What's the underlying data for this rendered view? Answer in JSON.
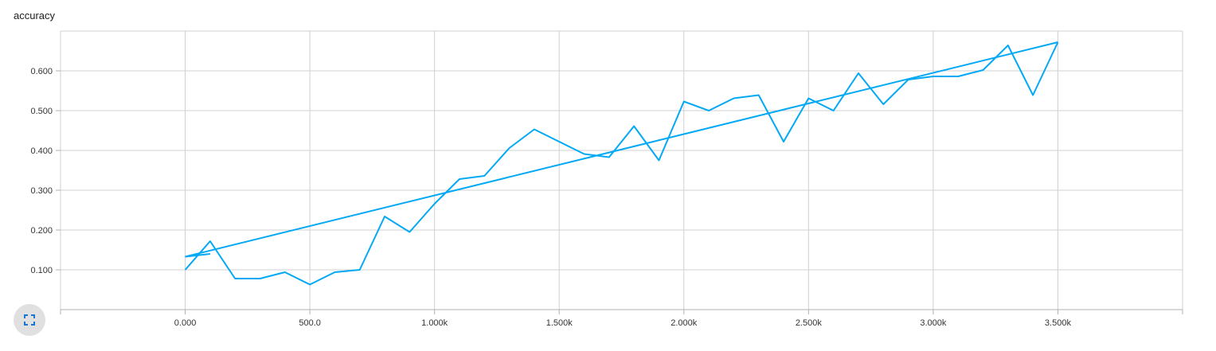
{
  "chart_data": {
    "type": "line",
    "title": "accuracy",
    "xlabel": "",
    "ylabel": "",
    "xlim": [
      -500,
      4000
    ],
    "ylim": [
      0,
      0.7
    ],
    "x_ticks": [
      {
        "value": 0,
        "label": "0.000"
      },
      {
        "value": 500,
        "label": "500.0"
      },
      {
        "value": 1000,
        "label": "1.000k"
      },
      {
        "value": 1500,
        "label": "1.500k"
      },
      {
        "value": 2000,
        "label": "2.000k"
      },
      {
        "value": 2500,
        "label": "2.500k"
      },
      {
        "value": 3000,
        "label": "3.000k"
      },
      {
        "value": 3500,
        "label": "3.500k"
      }
    ],
    "y_ticks": [
      {
        "value": 0.1,
        "label": "0.100"
      },
      {
        "value": 0.2,
        "label": "0.200"
      },
      {
        "value": 0.3,
        "label": "0.300"
      },
      {
        "value": 0.4,
        "label": "0.400"
      },
      {
        "value": 0.5,
        "label": "0.500"
      },
      {
        "value": 0.6,
        "label": "0.600"
      }
    ],
    "grid": true,
    "line_color": "#03a9f4",
    "series": [
      {
        "points": [
          {
            "x": 0,
            "y": 0.133
          },
          {
            "x": 100,
            "y": 0.14
          }
        ]
      },
      {
        "points": [
          {
            "x": 0,
            "y": 0.133
          },
          {
            "x": 3500,
            "y": 0.672
          }
        ]
      },
      {
        "points": [
          {
            "x": 0,
            "y": 0.1
          },
          {
            "x": 100,
            "y": 0.172
          },
          {
            "x": 200,
            "y": 0.078
          },
          {
            "x": 300,
            "y": 0.078
          },
          {
            "x": 400,
            "y": 0.094
          },
          {
            "x": 500,
            "y": 0.063
          },
          {
            "x": 600,
            "y": 0.094
          },
          {
            "x": 700,
            "y": 0.1
          },
          {
            "x": 800,
            "y": 0.234
          },
          {
            "x": 900,
            "y": 0.195
          },
          {
            "x": 1000,
            "y": 0.266
          },
          {
            "x": 1100,
            "y": 0.328
          },
          {
            "x": 1200,
            "y": 0.336
          },
          {
            "x": 1300,
            "y": 0.406
          },
          {
            "x": 1400,
            "y": 0.453
          },
          {
            "x": 1500,
            "y": 0.422
          },
          {
            "x": 1600,
            "y": 0.391
          },
          {
            "x": 1700,
            "y": 0.383
          },
          {
            "x": 1800,
            "y": 0.461
          },
          {
            "x": 1900,
            "y": 0.375
          },
          {
            "x": 2000,
            "y": 0.523
          },
          {
            "x": 2100,
            "y": 0.5
          },
          {
            "x": 2200,
            "y": 0.531
          },
          {
            "x": 2300,
            "y": 0.539
          },
          {
            "x": 2400,
            "y": 0.422
          },
          {
            "x": 2500,
            "y": 0.531
          },
          {
            "x": 2600,
            "y": 0.5
          },
          {
            "x": 2700,
            "y": 0.594
          },
          {
            "x": 2800,
            "y": 0.516
          },
          {
            "x": 2900,
            "y": 0.578
          },
          {
            "x": 3000,
            "y": 0.586
          },
          {
            "x": 3100,
            "y": 0.586
          },
          {
            "x": 3200,
            "y": 0.602
          },
          {
            "x": 3300,
            "y": 0.664
          },
          {
            "x": 3400,
            "y": 0.539
          },
          {
            "x": 3500,
            "y": 0.672
          }
        ]
      }
    ]
  },
  "expand_icon": "fullscreen-icon",
  "expand_icon_color": "#1976d2"
}
